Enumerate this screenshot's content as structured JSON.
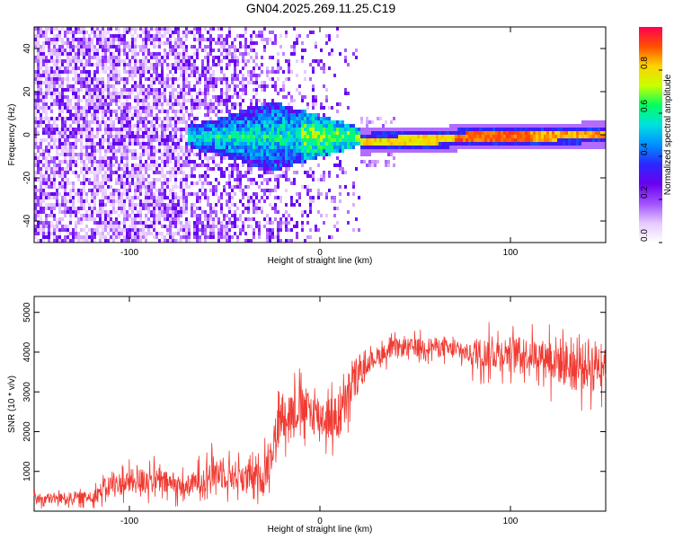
{
  "title": "GN04.2025.269.11.25.C19",
  "colors": {
    "snr_line": "#f03a32",
    "colormap": [
      "#ffffff",
      "#e6c8ff",
      "#a050ff",
      "#6a00f0",
      "#2a28ff",
      "#0090ff",
      "#00e0e0",
      "#00ff60",
      "#c8ff00",
      "#ffd200",
      "#ff5000",
      "#ff0050"
    ]
  },
  "chart_data": [
    {
      "type": "heatmap",
      "name": "spectrogram",
      "xlabel": "Height of straight line (km)",
      "ylabel": "Frequency (Hz)",
      "xlim": [
        -150,
        150
      ],
      "ylim": [
        -50,
        50
      ],
      "xticks": [
        -100,
        0,
        100
      ],
      "yticks": [
        40,
        20,
        0,
        -20,
        -40
      ],
      "colorbar": {
        "label": "Normalized spectral amplitude",
        "range": [
          0,
          1
        ],
        "ticks": [
          "0.0",
          "0.2",
          "0.4",
          "0.6",
          "0.8"
        ],
        "tick_values": [
          0.0,
          0.2,
          0.4,
          0.6,
          0.8
        ]
      },
      "ridge": [
        {
          "x": 20,
          "y": -2.5
        },
        {
          "x": 60,
          "y": -1.5
        },
        {
          "x": 80,
          "y": 0
        },
        {
          "x": 110,
          "y": 0
        },
        {
          "x": 150,
          "y": 1
        }
      ]
    },
    {
      "type": "line",
      "name": "snr",
      "xlabel": "Height of straight line (km)",
      "ylabel": "SNR (10 * v/v)",
      "xlim": [
        -150,
        150
      ],
      "ylim": [
        0,
        5400
      ],
      "xticks": [
        -100,
        0,
        100
      ],
      "yticks": [
        1000,
        2000,
        3000,
        4000,
        5000
      ],
      "envelope": [
        {
          "x": -150,
          "y": 300
        },
        {
          "x": -120,
          "y": 350
        },
        {
          "x": -110,
          "y": 650
        },
        {
          "x": -90,
          "y": 800
        },
        {
          "x": -70,
          "y": 600
        },
        {
          "x": -55,
          "y": 1000
        },
        {
          "x": -40,
          "y": 850
        },
        {
          "x": -30,
          "y": 800
        },
        {
          "x": -27,
          "y": 1300
        },
        {
          "x": -20,
          "y": 2400
        },
        {
          "x": -10,
          "y": 2600
        },
        {
          "x": 0,
          "y": 2400
        },
        {
          "x": 10,
          "y": 2300
        },
        {
          "x": 20,
          "y": 3500
        },
        {
          "x": 30,
          "y": 3900
        },
        {
          "x": 40,
          "y": 4100
        },
        {
          "x": 60,
          "y": 4150
        },
        {
          "x": 80,
          "y": 3950
        },
        {
          "x": 100,
          "y": 4000
        },
        {
          "x": 120,
          "y": 3900
        },
        {
          "x": 135,
          "y": 3600
        },
        {
          "x": 150,
          "y": 3800
        }
      ]
    }
  ]
}
